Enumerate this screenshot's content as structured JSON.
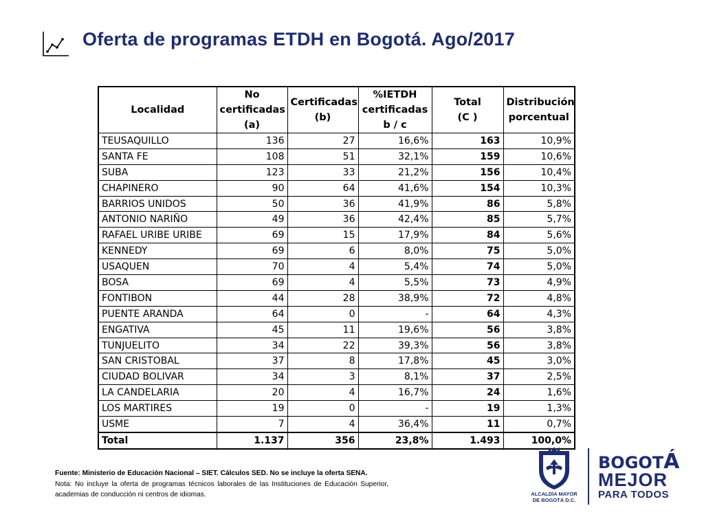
{
  "header": {
    "title": "Oferta de programas ETDH en Bogotá. Ago/2017",
    "icon": "line-chart-icon"
  },
  "table": {
    "headers": [
      [
        "Localidad"
      ],
      [
        "No",
        "certificadas",
        "(a)"
      ],
      [
        "Certificadas",
        "(b)"
      ],
      [
        "%IETDH",
        "certificadas",
        "b / c"
      ],
      [
        "Total",
        "(C )"
      ],
      [
        "Distribución",
        "porcentual"
      ]
    ],
    "rows": [
      [
        "TEUSAQUILLO",
        "136",
        "27",
        "16,6%",
        "163",
        "10,9%"
      ],
      [
        "SANTA FE",
        "108",
        "51",
        "32,1%",
        "159",
        "10,6%"
      ],
      [
        "SUBA",
        "123",
        "33",
        "21,2%",
        "156",
        "10,4%"
      ],
      [
        "CHAPINERO",
        "90",
        "64",
        "41,6%",
        "154",
        "10,3%"
      ],
      [
        "BARRIOS UNIDOS",
        "50",
        "36",
        "41,9%",
        "86",
        "5,8%"
      ],
      [
        "ANTONIO NARIÑO",
        "49",
        "36",
        "42,4%",
        "85",
        "5,7%"
      ],
      [
        "RAFAEL URIBE URIBE",
        "69",
        "15",
        "17,9%",
        "84",
        "5,6%"
      ],
      [
        "KENNEDY",
        "69",
        "6",
        "8,0%",
        "75",
        "5,0%"
      ],
      [
        "USAQUEN",
        "70",
        "4",
        "5,4%",
        "74",
        "5,0%"
      ],
      [
        "BOSA",
        "69",
        "4",
        "5,5%",
        "73",
        "4,9%"
      ],
      [
        "FONTIBON",
        "44",
        "28",
        "38,9%",
        "72",
        "4,8%"
      ],
      [
        "PUENTE ARANDA",
        "64",
        "0",
        "-",
        "64",
        "4,3%"
      ],
      [
        "ENGATIVA",
        "45",
        "11",
        "19,6%",
        "56",
        "3,8%"
      ],
      [
        "TUNJUELITO",
        "34",
        "22",
        "39,3%",
        "56",
        "3,8%"
      ],
      [
        "SAN CRISTOBAL",
        "37",
        "8",
        "17,8%",
        "45",
        "3,0%"
      ],
      [
        "CIUDAD BOLIVAR",
        "34",
        "3",
        "8,1%",
        "37",
        "2,5%"
      ],
      [
        "LA CANDELARIA",
        "20",
        "4",
        "16,7%",
        "24",
        "1,6%"
      ],
      [
        "LOS MARTIRES",
        "19",
        "0",
        "-",
        "19",
        "1,3%"
      ],
      [
        "USME",
        "7",
        "4",
        "36,4%",
        "11",
        "0,7%"
      ]
    ],
    "total": [
      "Total",
      "1.137",
      "356",
      "23,8%",
      "1.493",
      "100,0%"
    ]
  },
  "notes": {
    "fuente": "Fuente: Ministerio de Educación Nacional – SIET. Cálculos SED. No se incluye la oferta SENA.",
    "nota": "Nota: No incluye la oferta de programas técnicos laborales de las Instituciones de Educación Superior, academias de conducción ni centros de idiomas."
  },
  "logos": {
    "alcaldia": [
      "ALCALDÍA MAYOR",
      "DE BOGOTÁ D.C."
    ],
    "bogota": {
      "line1_pre": "BOGOT",
      "line1_accent": "Á",
      "line2": "MEJOR",
      "line3": "PARA TODOS"
    },
    "colors": {
      "brand_blue": "#1f2d6e"
    }
  }
}
